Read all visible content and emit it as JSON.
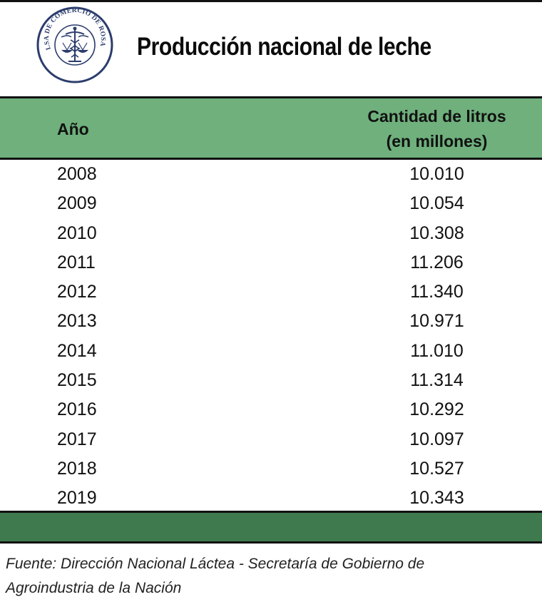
{
  "header": {
    "logo_text": "BOLSA DE COMERCIO DE ROSARIO",
    "title": "Producción nacional de leche"
  },
  "colors": {
    "header_green": "#6fb07c",
    "footer_green": "#3f7a4e",
    "logo_blue": "#2b3d6d"
  },
  "chart_data": {
    "type": "table",
    "title": "Producción nacional de leche",
    "columns": [
      "Año",
      "Cantidad de litros (en millones)"
    ],
    "column_header_lines": [
      "Cantidad de litros",
      "(en millones)"
    ],
    "rows": [
      {
        "year": "2008",
        "value": "10.010"
      },
      {
        "year": "2009",
        "value": "10.054"
      },
      {
        "year": "2010",
        "value": "10.308"
      },
      {
        "year": "2011",
        "value": "11.206"
      },
      {
        "year": "2012",
        "value": "11.340"
      },
      {
        "year": "2013",
        "value": "10.971"
      },
      {
        "year": "2014",
        "value": "11.010"
      },
      {
        "year": "2015",
        "value": "11.314"
      },
      {
        "year": "2016",
        "value": "10.292"
      },
      {
        "year": "2017",
        "value": "10.097"
      },
      {
        "year": "2018",
        "value": "10.527"
      },
      {
        "year": "2019",
        "value": "10.343"
      }
    ],
    "source_lines": [
      "Fuente: Dirección Nacional Láctea - Secretaría de Gobierno de",
      "Agroindustria de la Nación"
    ]
  }
}
